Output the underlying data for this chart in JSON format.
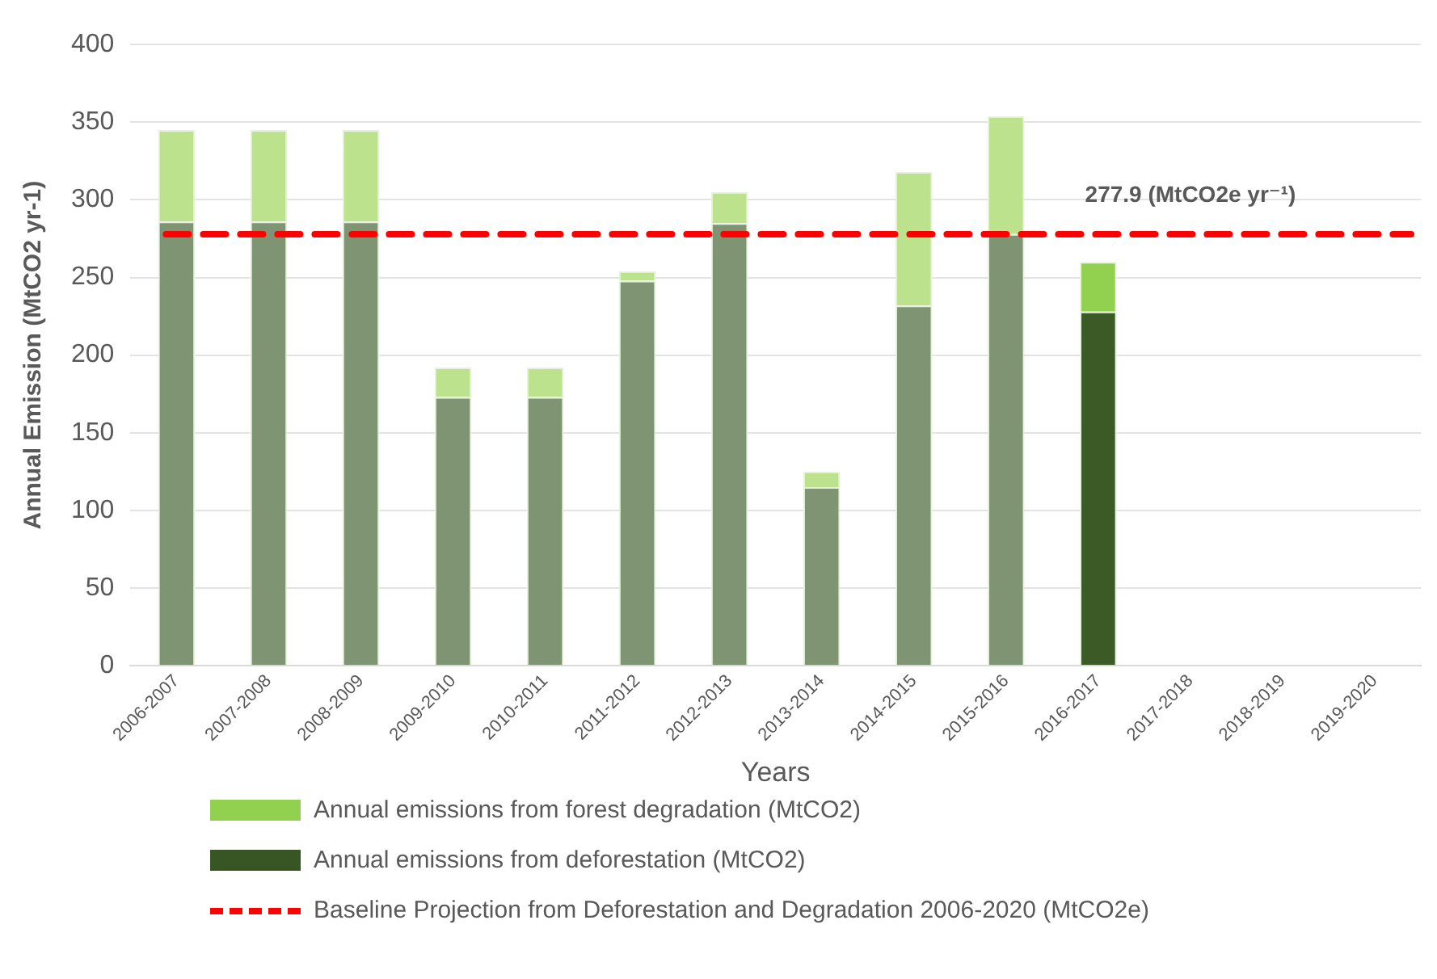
{
  "chart_data": {
    "type": "bar",
    "stacked": true,
    "xlabel": "Years",
    "ylabel": "Annual Emission (MtCO2 yr-1)",
    "categories": [
      "2006-2007",
      "2007-2008",
      "2008-2009",
      "2009-2010",
      "2010-2011",
      "2011-2012",
      "2012-2013",
      "2013-2014",
      "2014-2015",
      "2015-2016",
      "2016-2017",
      "2017-2018",
      "2018-2019",
      "2019-2020"
    ],
    "series": [
      {
        "name": "Annual emissions from deforestation (MtCO2)",
        "color": "#375623",
        "colors": [
          "#7f9472",
          "#7f9472",
          "#7f9472",
          "#7f9472",
          "#7f9472",
          "#7f9472",
          "#7f9472",
          "#7f9472",
          "#7f9472",
          "#7f9472",
          "#3b5a25",
          null,
          null,
          null
        ],
        "values": [
          286,
          286,
          286,
          173,
          173,
          248,
          285,
          115,
          232,
          278,
          228,
          null,
          null,
          null
        ]
      },
      {
        "name": "Annual emissions from forest degradation (MtCO2)",
        "color": "#92d050",
        "colors": [
          "#bce28e",
          "#bce28e",
          "#bce28e",
          "#bce28e",
          "#bce28e",
          "#bce28e",
          "#bce28e",
          "#bce28e",
          "#bce28e",
          "#bce28e",
          "#92d050",
          null,
          null,
          null
        ],
        "values": [
          59,
          59,
          59,
          19,
          19,
          6,
          20,
          10,
          86,
          76,
          32,
          null,
          null,
          null
        ]
      }
    ],
    "ylim": [
      0,
      400
    ],
    "yticks": [
      0,
      50,
      100,
      150,
      200,
      250,
      300,
      350,
      400
    ],
    "grid": "y",
    "legend": "bottom",
    "ref_lines": [
      {
        "axis": "y",
        "value": 277.9,
        "label": "Baseline Projection from Deforestation and Degradation 2006-2020 (MtCO2e)",
        "color": "#ff0000",
        "line_style": "dashed"
      }
    ],
    "annotations": [
      {
        "text": "277.9 (MtCO2e yr⁻¹)",
        "x": "2017-2018",
        "y": 277.9
      }
    ]
  }
}
